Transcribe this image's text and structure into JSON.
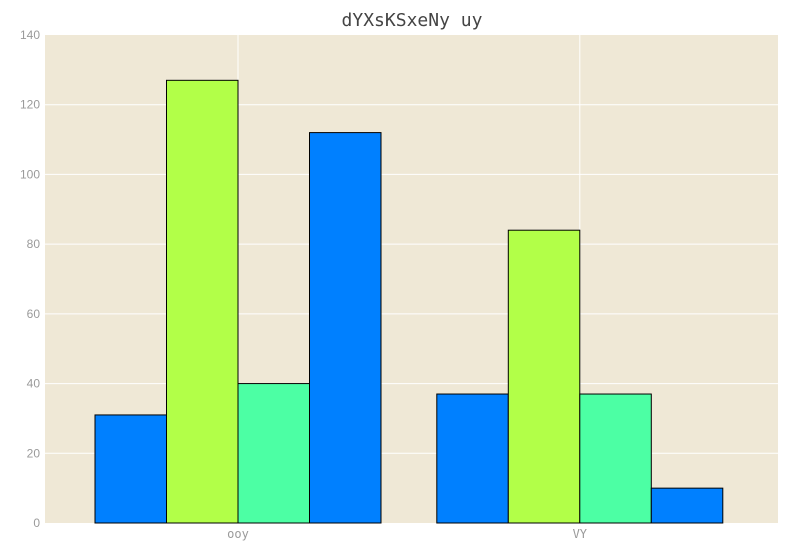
{
  "chart_data": {
    "type": "bar",
    "title": "dYXsKSxeNy uy",
    "xlabel": "",
    "ylabel": "",
    "categories": [
      "ooy",
      "VY"
    ],
    "series": [
      {
        "values": [
          31,
          37
        ],
        "color": "#0080ff"
      },
      {
        "values": [
          127,
          84
        ],
        "color": "#b2ff48"
      },
      {
        "values": [
          40,
          37
        ],
        "color": "#4cffa4"
      },
      {
        "values": [
          112,
          10
        ],
        "color": "#0080ff"
      }
    ],
    "ylim": [
      0,
      140
    ],
    "yticks": [
      0,
      20,
      40,
      60,
      80,
      100,
      120,
      140
    ],
    "grid": true,
    "legend": "none",
    "colors": {
      "plot_background": "#efe8d6",
      "grid": "#ffffff",
      "bar_edge": "#000000"
    }
  }
}
